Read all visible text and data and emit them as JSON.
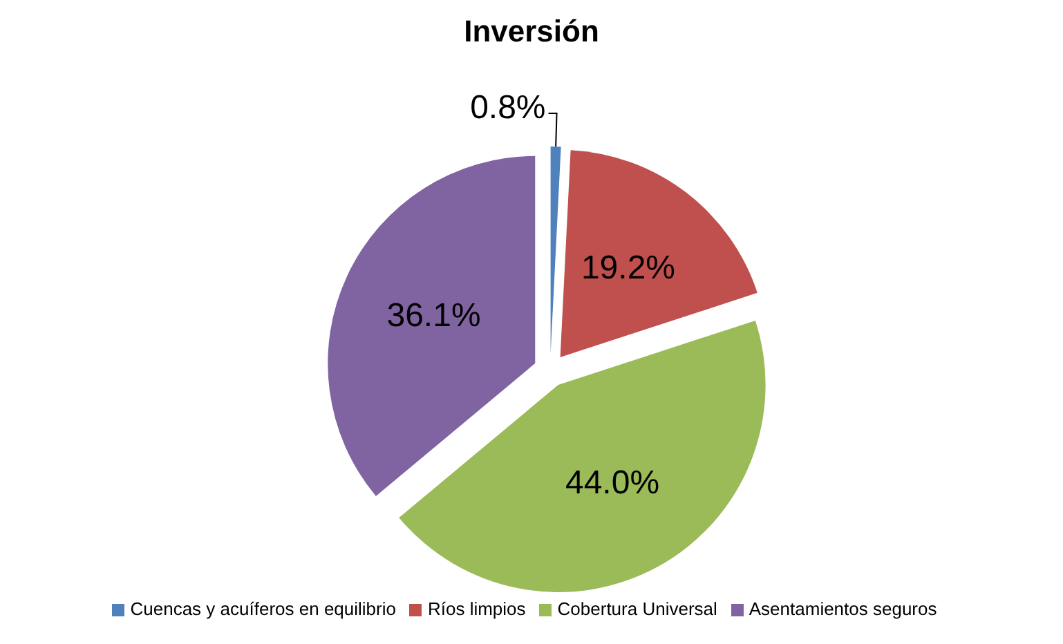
{
  "chart_data": {
    "type": "pie",
    "title": "Inversión",
    "categories": [
      "Cuencas y acuíferos en equilibrio",
      "Ríos limpios",
      "Cobertura Universal",
      "Asentamientos seguros"
    ],
    "values": [
      0.8,
      19.2,
      44.0,
      36.1
    ],
    "colors": [
      "#4f81bd",
      "#c0504d",
      "#9bbb59",
      "#8064a2"
    ],
    "value_labels": [
      "0.8%",
      "19.2%",
      "44.0%",
      "36.1%"
    ],
    "legend": "bottom"
  }
}
